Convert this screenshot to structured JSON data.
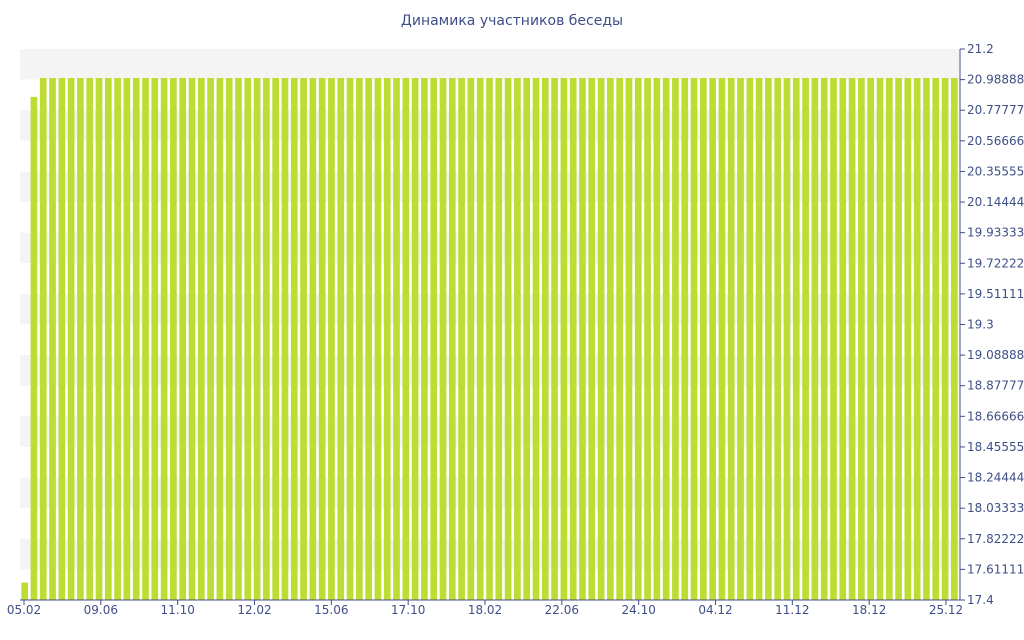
{
  "chart_data": {
    "type": "bar",
    "title": "Динамика участников беседы",
    "xlabel": "",
    "ylabel": "",
    "ylim": [
      17.4,
      21.2
    ],
    "y_axis_side": "right",
    "grid": "alternating horizontal bands",
    "y_tick_labels": [
      "21.2",
      "20.98888",
      "20.77777",
      "20.56666",
      "20.35555",
      "20.14444",
      "19.93333",
      "19.72222",
      "19.51111",
      "19.3",
      "19.08888",
      "18.87777",
      "18.66666",
      "18.45555",
      "18.24444",
      "18.03333",
      "17.82222",
      "17.61111",
      "17.4"
    ],
    "x_tick_labels": [
      "05.02",
      "09.06",
      "11.10",
      "12.02",
      "15.06",
      "17.10",
      "18.02",
      "22.06",
      "24.10",
      "04.12",
      "11.12",
      "18.12",
      "25.12"
    ],
    "bar_count": 101,
    "values": [
      17.52,
      20.87,
      21,
      21,
      21,
      21,
      21,
      21,
      21,
      21,
      21,
      21,
      21,
      21,
      21,
      21,
      21,
      21,
      21,
      21,
      21,
      21,
      21,
      21,
      21,
      21,
      21,
      21,
      21,
      21,
      21,
      21,
      21,
      21,
      21,
      21,
      21,
      21,
      21,
      21,
      21,
      21,
      21,
      21,
      21,
      21,
      21,
      21,
      21,
      21,
      21,
      21,
      21,
      21,
      21,
      21,
      21,
      21,
      21,
      21,
      21,
      21,
      21,
      21,
      21,
      21,
      21,
      21,
      21,
      21,
      21,
      21,
      21,
      21,
      21,
      21,
      21,
      21,
      21,
      21,
      21,
      21,
      21,
      21,
      21,
      21,
      21,
      21,
      21,
      21,
      21,
      21,
      21,
      21,
      21,
      21,
      21,
      21,
      21,
      21,
      21
    ],
    "colors": {
      "bar": "#bddd33",
      "band": "#f4f4f4",
      "axis": "#3f4f86",
      "text": "#3f4f86"
    }
  }
}
